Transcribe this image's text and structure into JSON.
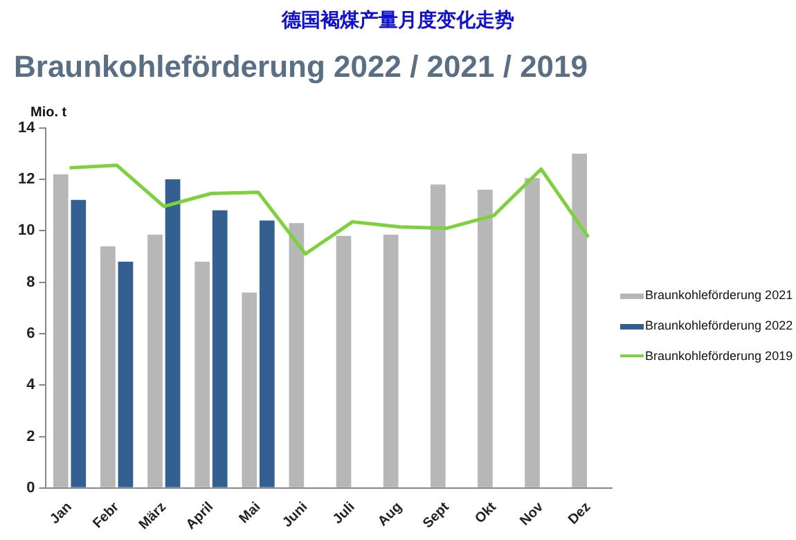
{
  "chart_data": {
    "type": "bar",
    "title": "德国褐煤产量月度变化走势",
    "subtitle": "Braunkohleförderung 2022 / 2021 / 2019",
    "ylabel": "Mio. t",
    "categories": [
      "Jan",
      "Febr",
      "März",
      "April",
      "Mai",
      "Juni",
      "Juli",
      "Aug",
      "Sept",
      "Okt",
      "Nov",
      "Dez"
    ],
    "series": [
      {
        "name": "Braunkohleförderung 2021",
        "color": "#b7b7b7",
        "values": [
          12.2,
          9.4,
          9.85,
          8.8,
          7.6,
          10.3,
          9.8,
          9.85,
          11.8,
          11.6,
          12.05,
          13.0
        ]
      },
      {
        "name": "Braunkohleförderung 2022",
        "color": "#336091",
        "values": [
          11.2,
          8.8,
          12.0,
          10.8,
          10.4,
          null,
          null,
          null,
          null,
          null,
          null,
          null
        ]
      },
      {
        "name": "Braunkohleförderung 2019",
        "type": "line",
        "color": "#7dd13c",
        "values": [
          12.45,
          12.55,
          10.95,
          11.45,
          11.5,
          9.1,
          10.35,
          10.15,
          10.1,
          10.6,
          12.4,
          9.75
        ]
      }
    ],
    "ylim": [
      0,
      14
    ],
    "yticks": [
      0,
      2,
      4,
      6,
      8,
      10,
      12,
      14
    ],
    "grid": false,
    "legend": "right",
    "marker": "none"
  }
}
